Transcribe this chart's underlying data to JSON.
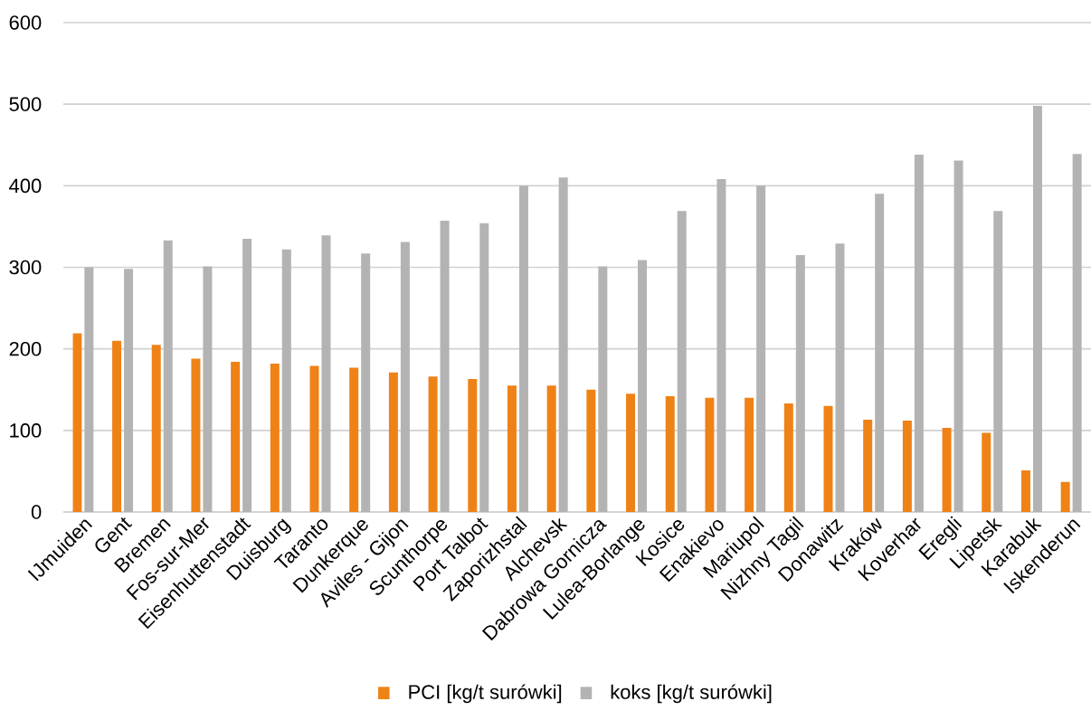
{
  "chart_data": {
    "type": "bar",
    "categories": [
      "IJmuiden",
      "Gent",
      "Bremen",
      "Fos-sur-Mer",
      "Eisenhuttenstadt",
      "Duisburg",
      "Taranto",
      "Dunkerque",
      "Aviles - Gijon",
      "Scunthorpe",
      "Port Talbot",
      "Zaporizhstal",
      "Alchevsk",
      "Dabrowa Gornicza",
      "Lulea-Borlange",
      "Kosice",
      "Enakievo",
      "Mariupol",
      "Nizhny Tagil",
      "Donawitz",
      "Kraków",
      "Koverhar",
      "Eregli",
      "Lipetsk",
      "Karabuk",
      "Iskenderun"
    ],
    "series": [
      {
        "name": "PCI [kg/t surówki]",
        "color": "#ef8216",
        "values": [
          219,
          210,
          205,
          188,
          184,
          182,
          179,
          177,
          171,
          166,
          163,
          155,
          155,
          150,
          145,
          142,
          140,
          140,
          133,
          130,
          113,
          112,
          103,
          97,
          51,
          37
        ]
      },
      {
        "name": "koks [kg/t surówki]",
        "color": "#b3b3b3",
        "values": [
          300,
          298,
          333,
          301,
          335,
          322,
          339,
          317,
          331,
          357,
          354,
          400,
          410,
          301,
          309,
          369,
          408,
          400,
          315,
          329,
          390,
          438,
          431,
          369,
          498,
          439
        ]
      }
    ],
    "ylim": [
      0,
      600
    ],
    "yticks": [
      0,
      100,
      200,
      300,
      400,
      500,
      600
    ],
    "grid": "y",
    "legend": "bottom"
  }
}
